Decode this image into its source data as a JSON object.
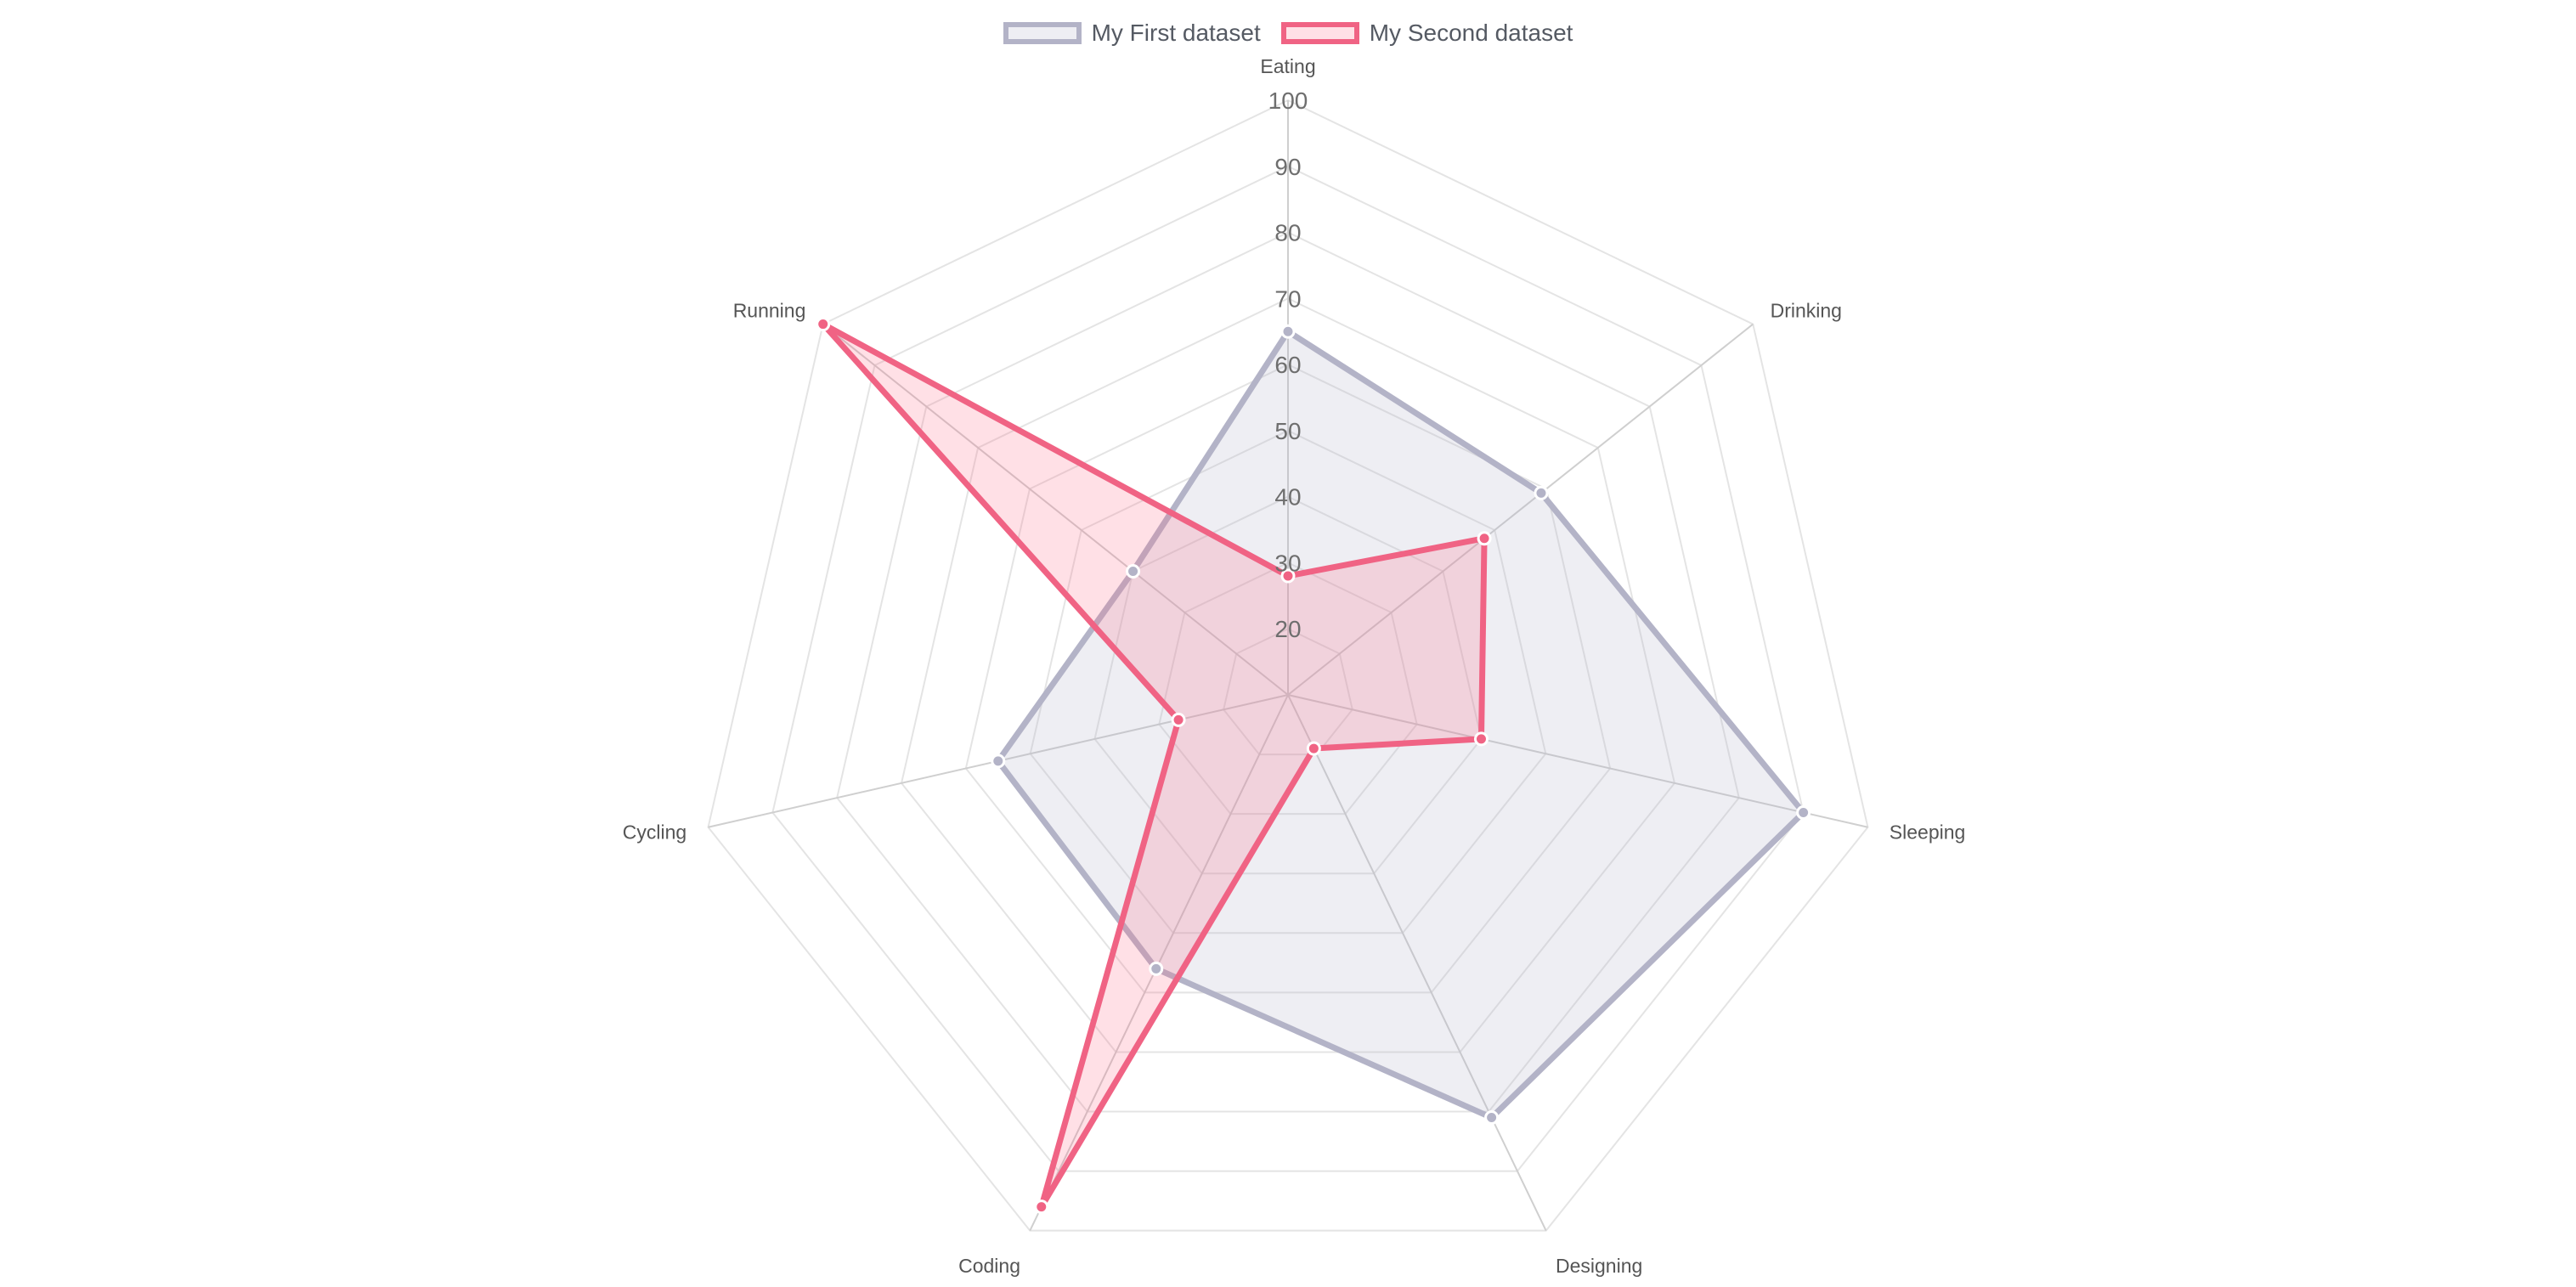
{
  "chart_data": {
    "type": "radar",
    "labels": [
      "Eating",
      "Drinking",
      "Sleeping",
      "Designing",
      "Coding",
      "Cycling",
      "Running"
    ],
    "series": [
      {
        "name": "My First dataset",
        "values": [
          65,
          59,
          90,
          81,
          56,
          55,
          40
        ],
        "border_color": "#b3b3c7",
        "fill_color": "rgba(179,179,199,0.22)",
        "point_color": "#b3b3c7"
      },
      {
        "name": "My Second dataset",
        "values": [
          28,
          48,
          40,
          19,
          96,
          27,
          100
        ],
        "border_color": "#f06384",
        "fill_color": "rgba(255,99,132,0.2)",
        "point_color": "#f06384"
      }
    ],
    "r_ticks": [
      "20",
      "30",
      "40",
      "50",
      "60",
      "70",
      "80",
      "90",
      "100"
    ],
    "r_min": 10,
    "r_max": 100,
    "grid": true,
    "legend_position": "top"
  }
}
